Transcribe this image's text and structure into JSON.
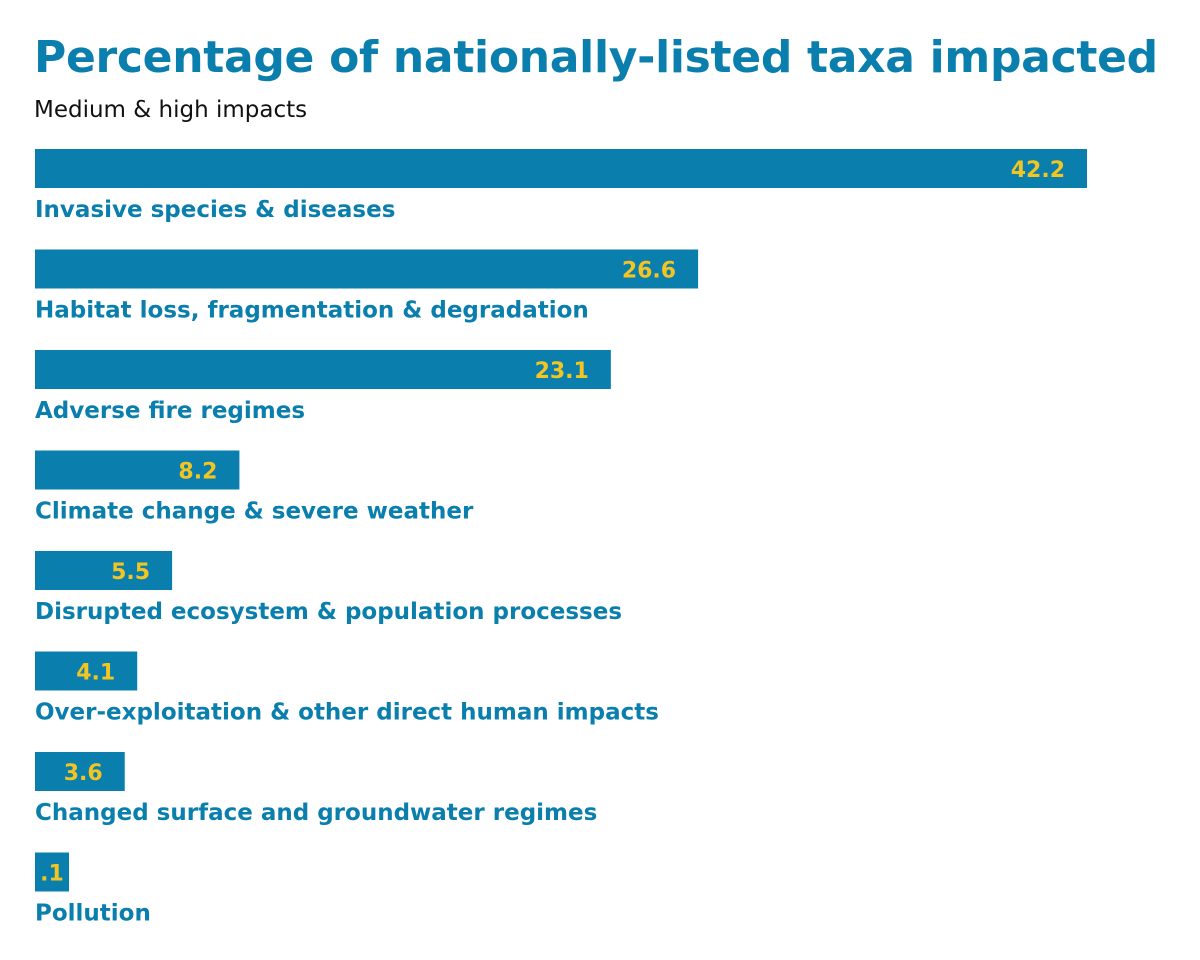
{
  "chart_data": {
    "type": "bar",
    "orientation": "horizontal",
    "title": "Percentage of nationally-listed taxa impacted",
    "subtitle": "Medium & high impacts",
    "categories": [
      "Invasive species & diseases",
      "Habitat loss, fragmentation & degradation",
      "Adverse fire regimes",
      "Climate change & severe weather",
      "Disrupted ecosystem & population processes",
      "Over-exploitation & other direct human impacts",
      "Changed surface and groundwater regimes",
      "Pollution"
    ],
    "values": [
      42.2,
      26.6,
      23.1,
      8.2,
      5.5,
      4.1,
      3.6,
      0.1
    ],
    "value_labels": [
      "42.2",
      "26.6",
      "23.1",
      "8.2",
      "5.5",
      "4.1",
      "3.6",
      ".1"
    ],
    "xlim": [
      0,
      42.2
    ],
    "grid": false,
    "legend": "none",
    "colors": {
      "bar": "#0a7fad",
      "value_label": "#f2c523",
      "category_label": "#0a7fad",
      "title": "#0a7fad",
      "subtitle": "#111111"
    }
  }
}
